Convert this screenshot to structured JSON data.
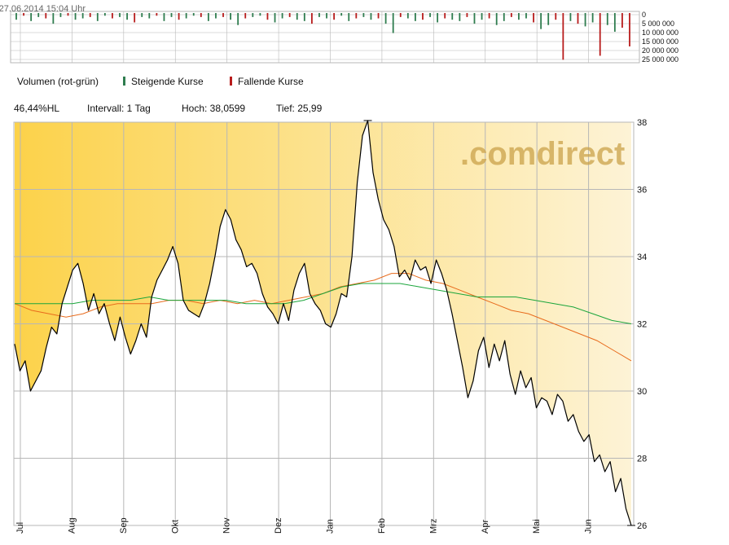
{
  "colors": {
    "price_line": "#000000",
    "fill_light": "#fdf3d6",
    "fill_dark": "#fcd24a",
    "grid": "#b7b7b7",
    "sma_fast": "#e86b1c",
    "sma_slow": "#1aa53b",
    "vol_up": "#2f7d4f",
    "vol_down": "#b81c1c",
    "watermark": "#c9a24a"
  },
  "header": {
    "timestamp": "27.06.2014 15:04 Uhr",
    "change_pct": "46,44%HL",
    "interval_label": "Intervall: 1 Tag",
    "high_label": "Hoch: 38,0599",
    "low_label": "Tief: 25,99"
  },
  "legend": {
    "volume_label": "Volumen (rot-grün)",
    "rising_label": "Steigende Kurse",
    "falling_label": "Fallende Kurse"
  },
  "watermark": ".comdirect",
  "chart_data": [
    {
      "type": "bar",
      "title": "",
      "series": [
        {
          "name": "Volumen (rot-grün)",
          "values": [
            5,
            2,
            6,
            3,
            4,
            8,
            3,
            2,
            5,
            4,
            3,
            6,
            2,
            4,
            3,
            5,
            7,
            3,
            4,
            2,
            6,
            3,
            5,
            4,
            2,
            3,
            6,
            4,
            3,
            5,
            9,
            4,
            3,
            2,
            5,
            7,
            4,
            3,
            5,
            6,
            8,
            3,
            4,
            5,
            2,
            6,
            4,
            3,
            5,
            4,
            8,
            15,
            3,
            4,
            6,
            5,
            3,
            7,
            4,
            5,
            6,
            3,
            8,
            5,
            4,
            9,
            6,
            3,
            5,
            4,
            7,
            12,
            9,
            5,
            35,
            6,
            8,
            10,
            7,
            32,
            9,
            14,
            11,
            25
          ]
        }
      ],
      "y_tick_labels": [
        "0",
        "5 000 000",
        "10 000 000",
        "15 000 000",
        "20 000 000",
        "25 000 000"
      ],
      "units": "shares",
      "note_colors": "rising green, falling red"
    },
    {
      "type": "line",
      "title": "",
      "x_tick_labels": [
        "Jul",
        "Aug",
        "Sep",
        "Okt",
        "Nov",
        "Dez",
        "Jan",
        "Feb",
        "Mrz",
        "Apr",
        "Mai",
        "Jun"
      ],
      "y_tick_labels": [
        "26",
        "28",
        "30",
        "32",
        "34",
        "36",
        "38"
      ],
      "ylim": [
        38,
        26
      ],
      "y_reversed": true,
      "high": 38.0599,
      "low": 25.99,
      "series": [
        {
          "name": "Kurs",
          "values": [
            31.4,
            30.6,
            30.9,
            30.0,
            30.3,
            30.6,
            31.3,
            31.9,
            31.7,
            32.6,
            33.1,
            33.6,
            33.8,
            33.2,
            32.4,
            32.9,
            32.3,
            32.6,
            32.0,
            31.5,
            32.2,
            31.6,
            31.1,
            31.5,
            32.0,
            31.6,
            32.8,
            33.3,
            33.6,
            33.9,
            34.3,
            33.8,
            32.7,
            32.4,
            32.3,
            32.2,
            32.6,
            33.2,
            34.0,
            34.9,
            35.4,
            35.1,
            34.5,
            34.2,
            33.7,
            33.8,
            33.5,
            32.9,
            32.5,
            32.3,
            32.0,
            32.6,
            32.1,
            33.0,
            33.5,
            33.8,
            32.9,
            32.6,
            32.4,
            32.0,
            31.9,
            32.3,
            32.9,
            32.8,
            34.0,
            36.2,
            37.6,
            38.05,
            36.5,
            35.7,
            35.1,
            34.8,
            34.3,
            33.4,
            33.6,
            33.3,
            33.9,
            33.6,
            33.7,
            33.2,
            33.9,
            33.5,
            33.0,
            32.3,
            31.5,
            30.7,
            29.8,
            30.3,
            31.2,
            31.6,
            30.7,
            31.4,
            30.9,
            31.5,
            30.5,
            29.9,
            30.6,
            30.1,
            30.4,
            29.5,
            29.8,
            29.7,
            29.3,
            29.9,
            29.7,
            29.1,
            29.3,
            28.8,
            28.5,
            28.7,
            27.9,
            28.1,
            27.6,
            27.9,
            27.0,
            27.4,
            26.5,
            26.0
          ]
        },
        {
          "name": "SMA fast",
          "values": [
            32.6,
            32.4,
            32.3,
            32.2,
            32.3,
            32.5,
            32.6,
            32.6,
            32.6,
            32.7,
            32.7,
            32.6,
            32.7,
            32.6,
            32.7,
            32.6,
            32.7,
            32.8,
            32.9,
            33.1,
            33.2,
            33.3,
            33.5,
            33.5,
            33.3,
            33.2,
            33.0,
            32.8,
            32.6,
            32.4,
            32.3,
            32.1,
            31.9,
            31.7,
            31.5,
            31.2,
            30.9
          ]
        },
        {
          "name": "SMA slow",
          "values": [
            32.6,
            32.6,
            32.6,
            32.6,
            32.7,
            32.7,
            32.7,
            32.8,
            32.7,
            32.7,
            32.7,
            32.7,
            32.6,
            32.6,
            32.6,
            32.7,
            32.9,
            33.1,
            33.2,
            33.2,
            33.2,
            33.1,
            33.0,
            32.9,
            32.8,
            32.8,
            32.8,
            32.7,
            32.6,
            32.5,
            32.3,
            32.1,
            32.0
          ]
        }
      ]
    }
  ]
}
